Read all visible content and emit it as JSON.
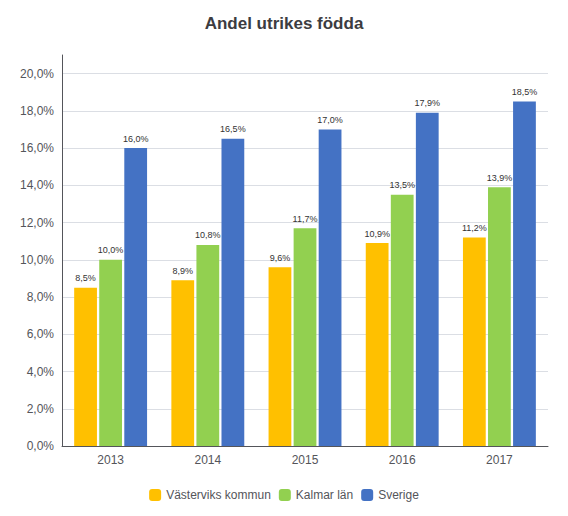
{
  "chart_data": {
    "type": "bar",
    "title": "Andel utrikes födda",
    "categories": [
      "2013",
      "2014",
      "2015",
      "2016",
      "2017"
    ],
    "series": [
      {
        "name": "Västerviks kommun",
        "color": "#FFC000",
        "values": [
          8.5,
          8.9,
          9.6,
          10.9,
          11.2
        ],
        "value_labels": [
          "8,5%",
          "8,9%",
          "9,6%",
          "10,9%",
          "11,2%"
        ]
      },
      {
        "name": "Kalmar län",
        "color": "#92D050",
        "values": [
          10.0,
          10.8,
          11.7,
          13.5,
          13.9
        ],
        "value_labels": [
          "10,0%",
          "10,8%",
          "11,7%",
          "13,5%",
          "13,9%"
        ]
      },
      {
        "name": "Sverige",
        "color": "#4472C4",
        "values": [
          16.0,
          16.5,
          17.0,
          17.9,
          18.5
        ],
        "value_labels": [
          "16,0%",
          "16,5%",
          "17,0%",
          "17,9%",
          "18,5%"
        ]
      }
    ],
    "ylim": [
      0,
      21
    ],
    "yticks": [
      {
        "value": 0,
        "label": "0,0%"
      },
      {
        "value": 2,
        "label": "2,0%"
      },
      {
        "value": 4,
        "label": "4,0%"
      },
      {
        "value": 6,
        "label": "6,0%"
      },
      {
        "value": 8,
        "label": "8,0%"
      },
      {
        "value": 10,
        "label": "10,0%"
      },
      {
        "value": 12,
        "label": "12,0%"
      },
      {
        "value": 14,
        "label": "14,0%"
      },
      {
        "value": 16,
        "label": "16,0%"
      },
      {
        "value": 18,
        "label": "18,0%"
      },
      {
        "value": 20,
        "label": "20,0%"
      }
    ],
    "grid": true,
    "legend": "bottom",
    "data_labels": true
  }
}
